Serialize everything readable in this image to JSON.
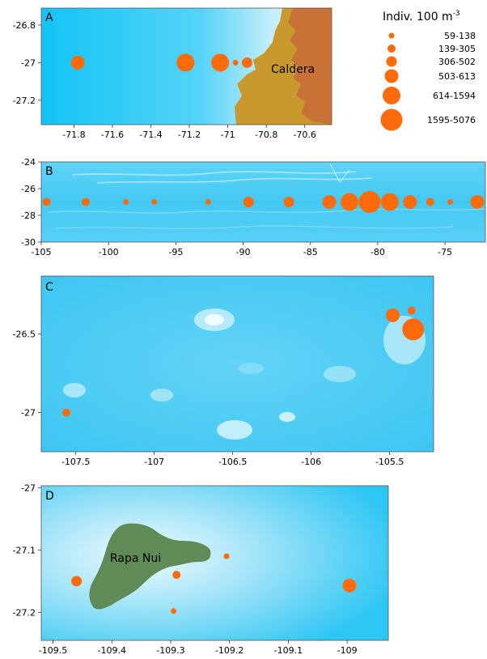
{
  "legend": {
    "title": "Indiv. 100 m",
    "title_sup": "-3",
    "classes": [
      {
        "label": "59-138",
        "size_class": 1
      },
      {
        "label": "139-305",
        "size_class": 2
      },
      {
        "label": "306-502",
        "size_class": 3
      },
      {
        "label": "503-613",
        "size_class": 4
      },
      {
        "label": "614-1594",
        "size_class": 5
      },
      {
        "label": "1595-5076",
        "size_class": 6
      }
    ]
  },
  "colors": {
    "ocean_deep": "#12c4f5",
    "ocean_shallow": "#d8f3fc",
    "marker": "#ff6a0a",
    "land_caldera_light": "#c9992e",
    "land_caldera_dark": "#c87237",
    "land_rapa_nui": "#5f8b56"
  },
  "chart_data": [
    {
      "type": "scatter",
      "panel": "A",
      "title": "A",
      "place_label": "Caldera",
      "xlim": [
        -71.97,
        -70.46
      ],
      "ylim": [
        -27.33,
        -26.71
      ],
      "xticks": [
        "-71.8",
        "-71.6",
        "-71.4",
        "-71.2",
        "-71",
        "-70.8",
        "-70.6"
      ],
      "yticks": [
        "-26.8",
        "-27",
        "-27.2"
      ],
      "points": [
        {
          "x": -71.78,
          "y": -27.0,
          "size_class": 4
        },
        {
          "x": -71.22,
          "y": -27.0,
          "size_class": 5
        },
        {
          "x": -71.04,
          "y": -27.0,
          "size_class": 5
        },
        {
          "x": -70.96,
          "y": -27.0,
          "size_class": 1
        },
        {
          "x": -70.9,
          "y": -27.0,
          "size_class": 3
        }
      ]
    },
    {
      "type": "scatter",
      "panel": "B",
      "title": "B",
      "xlim": [
        -105,
        -72
      ],
      "ylim": [
        -30,
        -24
      ],
      "xticks": [
        "-105",
        "-100",
        "-95",
        "-90",
        "-85",
        "-80",
        "-75"
      ],
      "yticks": [
        "-24",
        "-26",
        "-28",
        "-30"
      ],
      "points": [
        {
          "x": -104.6,
          "y": -27.0,
          "size_class": 2
        },
        {
          "x": -101.7,
          "y": -27.0,
          "size_class": 2
        },
        {
          "x": -98.7,
          "y": -27.0,
          "size_class": 1
        },
        {
          "x": -96.6,
          "y": -27.0,
          "size_class": 1
        },
        {
          "x": -92.6,
          "y": -27.0,
          "size_class": 1
        },
        {
          "x": -89.6,
          "y": -27.0,
          "size_class": 3
        },
        {
          "x": -86.6,
          "y": -27.0,
          "size_class": 3
        },
        {
          "x": -83.6,
          "y": -27.0,
          "size_class": 4
        },
        {
          "x": -82.1,
          "y": -27.0,
          "size_class": 5
        },
        {
          "x": -80.6,
          "y": -27.0,
          "size_class": 6
        },
        {
          "x": -79.1,
          "y": -27.0,
          "size_class": 5
        },
        {
          "x": -77.6,
          "y": -27.0,
          "size_class": 4
        },
        {
          "x": -76.1,
          "y": -27.0,
          "size_class": 2
        },
        {
          "x": -74.6,
          "y": -27.0,
          "size_class": 1
        },
        {
          "x": -72.6,
          "y": -27.0,
          "size_class": 4
        }
      ]
    },
    {
      "type": "scatter",
      "panel": "C",
      "title": "C",
      "xlim": [
        -107.72,
        -105.22
      ],
      "ylim": [
        -27.25,
        -26.13
      ],
      "xticks": [
        "-107.5",
        "-107",
        "-106.5",
        "-106",
        "-105.5"
      ],
      "yticks": [
        "-26.5",
        "-27"
      ],
      "points": [
        {
          "x": -107.56,
          "y": -27.0,
          "size_class": 2
        },
        {
          "x": -105.48,
          "y": -26.38,
          "size_class": 4
        },
        {
          "x": -105.36,
          "y": -26.35,
          "size_class": 2
        },
        {
          "x": -105.35,
          "y": -26.47,
          "size_class": 6
        }
      ]
    },
    {
      "type": "scatter",
      "panel": "D",
      "title": "D",
      "place_label": "Rapa Nui",
      "xlim": [
        -109.52,
        -108.93
      ],
      "ylim": [
        -27.245,
        -26.997
      ],
      "xticks": [
        "-109.5",
        "-109.4",
        "-109.3",
        "-109.2",
        "-109.1",
        "-109"
      ],
      "yticks": [
        "-27",
        "-27.1",
        "-27.2"
      ],
      "points": [
        {
          "x": -109.46,
          "y": -27.15,
          "size_class": 3
        },
        {
          "x": -109.29,
          "y": -27.14,
          "size_class": 2
        },
        {
          "x": -109.205,
          "y": -27.11,
          "size_class": 1
        },
        {
          "x": -109.295,
          "y": -27.198,
          "size_class": 1
        },
        {
          "x": -108.996,
          "y": -27.157,
          "size_class": 4
        }
      ]
    }
  ]
}
